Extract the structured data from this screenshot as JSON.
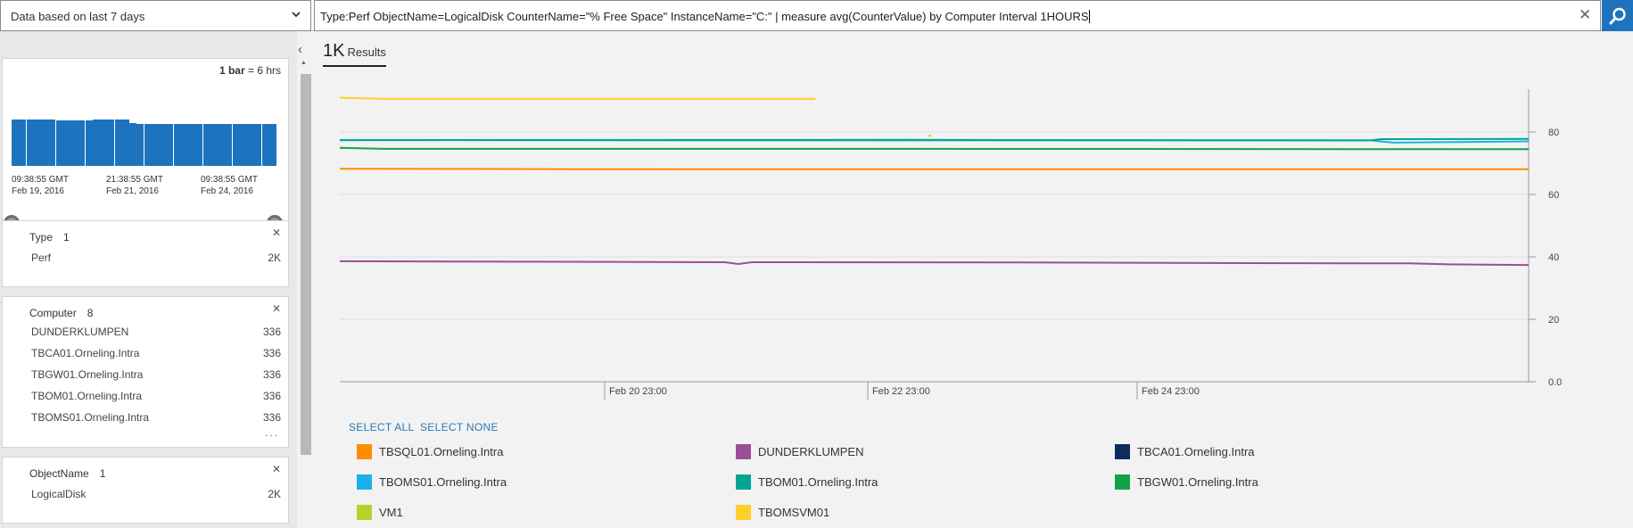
{
  "toolbar": {
    "time_range": "Data based on last 7 days",
    "query_prefix": "Type:Perf ObjectName=LogicalDisk CounterName=\"% Free Space\" InstanceName=\"C:\" | measure avg(CounterValue) by Computer Interval 1HOURS",
    "clear_icon": "close-icon",
    "search_icon": "search-icon"
  },
  "timeline": {
    "legend_bold": "1 bar",
    "legend_rest": " = 6 hrs",
    "bar_fractions": [
      0.88,
      0.88,
      0.88,
      0.88,
      0.88,
      0.88,
      0.87,
      0.87,
      0.87,
      0.87,
      0.87,
      0.88,
      0.88,
      0.88,
      0.88,
      0.88,
      0.82,
      0.8,
      0.8,
      0.8,
      0.8,
      0.8,
      0.8,
      0.8,
      0.8,
      0.8,
      0.8,
      0.8,
      0.8,
      0.8,
      0.8,
      0.8,
      0.8,
      0.8,
      0.8,
      0.8
    ],
    "ticks": [
      {
        "time": "09:38:55 GMT",
        "date": "Feb 19, 2016"
      },
      {
        "time": "21:38:55 GMT",
        "date": "Feb 21, 2016"
      },
      {
        "time": "09:38:55 GMT",
        "date": "Feb 24, 2016"
      }
    ]
  },
  "facets": {
    "type": {
      "title": "Type",
      "count": "1",
      "items": [
        {
          "label": "Perf",
          "value": "2K"
        }
      ]
    },
    "computer": {
      "title": "Computer",
      "count": "8",
      "items": [
        {
          "label": "DUNDERKLUMPEN",
          "value": "336"
        },
        {
          "label": "TBCA01.Orneling.Intra",
          "value": "336"
        },
        {
          "label": "TBGW01.Orneling.Intra",
          "value": "336"
        },
        {
          "label": "TBOM01.Orneling.Intra",
          "value": "336"
        },
        {
          "label": "TBOMS01.Orneling.Intra",
          "value": "336"
        }
      ],
      "more": "..."
    },
    "objectname": {
      "title": "ObjectName",
      "count": "1",
      "items": [
        {
          "label": "LogicalDisk",
          "value": "2K"
        }
      ]
    }
  },
  "results": {
    "count": "1K",
    "label": "Results"
  },
  "actions": {
    "select_all": "SELECT ALL",
    "select_none": "SELECT NONE"
  },
  "chart_data": {
    "type": "line",
    "x_ticks": [
      "Feb 20 23:00",
      "Feb 22 23:00",
      "Feb 24 23:00"
    ],
    "y_ticks": [
      "0.0",
      "20",
      "40",
      "60",
      "80"
    ],
    "ylim": [
      0,
      92
    ],
    "x_domain_days": [
      0,
      5.25
    ],
    "series": [
      {
        "name": "TBSQL01.Orneling.Intra",
        "color": "#ff8c00",
        "points": [
          [
            0,
            68.2
          ],
          [
            1.5,
            68.1
          ],
          [
            3,
            68.1
          ],
          [
            5.25,
            68.1
          ]
        ]
      },
      {
        "name": "DUNDERKLUMPEN",
        "color": "#9b4f96",
        "points": [
          [
            0,
            38.6
          ],
          [
            1.2,
            38.4
          ],
          [
            1.7,
            38.3
          ],
          [
            1.76,
            37.7
          ],
          [
            1.82,
            38.3
          ],
          [
            3.0,
            38.2
          ],
          [
            4.0,
            38.0
          ],
          [
            4.72,
            37.9
          ],
          [
            4.9,
            37.6
          ],
          [
            5.25,
            37.4
          ]
        ]
      },
      {
        "name": "TBCA01.Orneling.Intra",
        "color": "#0d2b5e",
        "points": []
      },
      {
        "name": "TBOMS01.Orneling.Intra",
        "color": "#1ab2e8",
        "points": [
          [
            0,
            77.4
          ],
          [
            2.0,
            77.3
          ],
          [
            4.55,
            77.3
          ],
          [
            4.65,
            76.6
          ],
          [
            5.25,
            77.0
          ]
        ]
      },
      {
        "name": "TBOM01.Orneling.Intra",
        "color": "#00a693",
        "points": [
          [
            0,
            77.4
          ],
          [
            2.5,
            77.5
          ],
          [
            4.55,
            77.3
          ],
          [
            4.6,
            77.7
          ],
          [
            5.25,
            77.8
          ]
        ]
      },
      {
        "name": "TBGW01.Orneling.Intra",
        "color": "#13a24a",
        "points": [
          [
            0,
            74.9
          ],
          [
            0.2,
            74.6
          ],
          [
            2.5,
            74.6
          ],
          [
            5.25,
            74.5
          ]
        ]
      },
      {
        "name": "VM1",
        "color": "#b6d32b",
        "points": [
          [
            2.6,
            78.7
          ],
          [
            2.61,
            78.9
          ]
        ]
      },
      {
        "name": "TBOMSVM01",
        "color": "#ffd02a",
        "points": [
          [
            0,
            91.0
          ],
          [
            0.2,
            90.6
          ],
          [
            2.1,
            90.6
          ]
        ]
      }
    ]
  }
}
